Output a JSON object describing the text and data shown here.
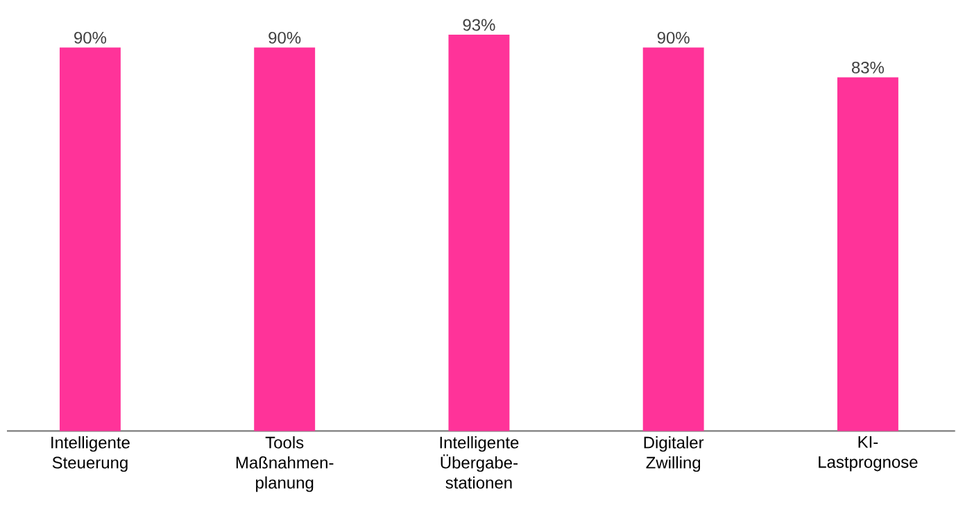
{
  "chart_data": {
    "type": "bar",
    "categories": [
      "Intelligente Steuerung",
      "Tools Maßnahmen-planung",
      "Intelligente Übergabe-stationen",
      "Digitaler Zwilling",
      "KI-Lastprognose"
    ],
    "values": [
      90,
      90,
      93,
      90,
      83
    ],
    "value_labels": [
      "90%",
      "90%",
      "93%",
      "90%",
      "83%"
    ],
    "color": "#ff3399"
  }
}
